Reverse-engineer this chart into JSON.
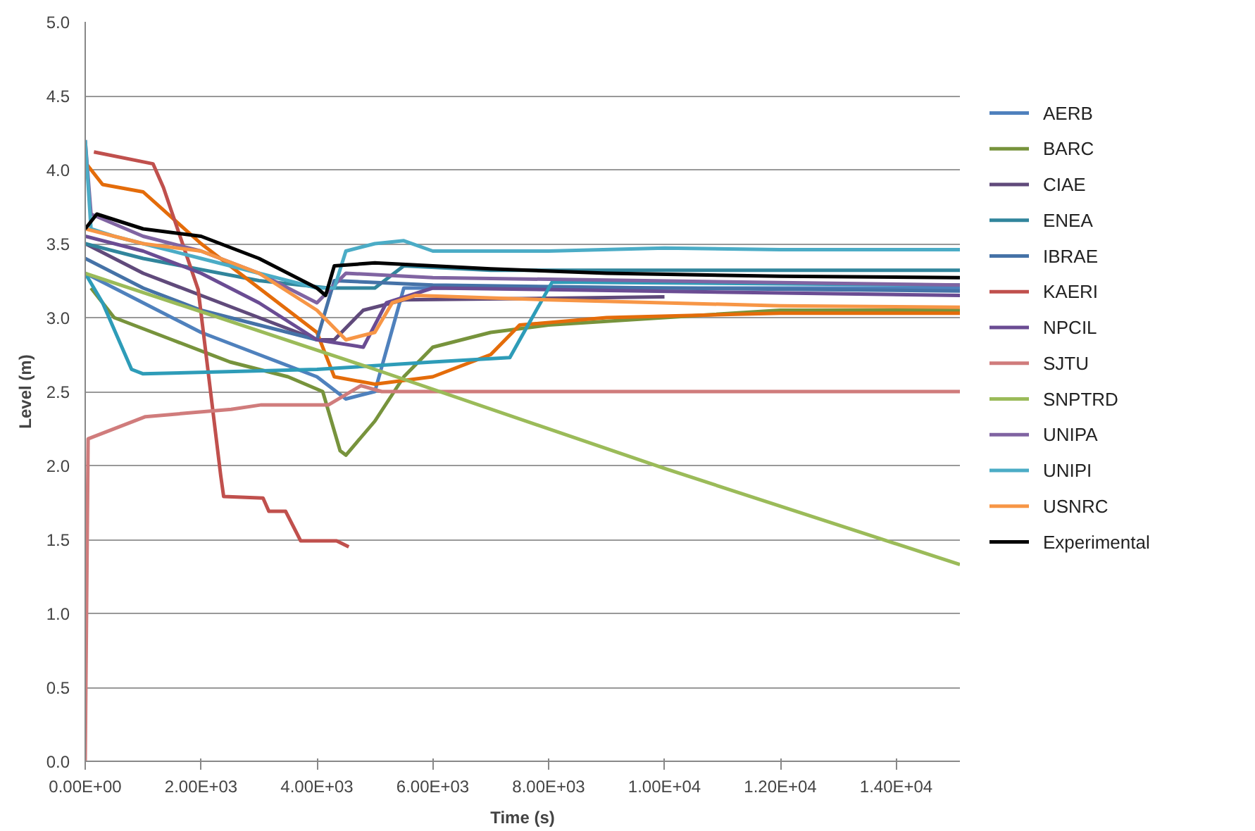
{
  "chart_data": {
    "type": "line",
    "xlabel": "Time (s)",
    "ylabel": "Level (m)",
    "xlim": [
      0,
      15100
    ],
    "ylim": [
      0,
      5
    ],
    "xticks": [
      {
        "value": 0,
        "label": "0.00E+00"
      },
      {
        "value": 2000,
        "label": "2.00E+03"
      },
      {
        "value": 4000,
        "label": "4.00E+03"
      },
      {
        "value": 6000,
        "label": "6.00E+03"
      },
      {
        "value": 8000,
        "label": "8.00E+03"
      },
      {
        "value": 10000,
        "label": "1.00E+04"
      },
      {
        "value": 12000,
        "label": "1.20E+04"
      },
      {
        "value": 14000,
        "label": "1.40E+04"
      }
    ],
    "yticks": [
      {
        "value": 0,
        "label": "0.0"
      },
      {
        "value": 0.5,
        "label": "0.5"
      },
      {
        "value": 1,
        "label": "1.0"
      },
      {
        "value": 1.5,
        "label": "1.5"
      },
      {
        "value": 2,
        "label": "2.0"
      },
      {
        "value": 2.5,
        "label": "2.5"
      },
      {
        "value": 3,
        "label": "3.0"
      },
      {
        "value": 3.5,
        "label": "3.5"
      },
      {
        "value": 4,
        "label": "4.0"
      },
      {
        "value": 4.5,
        "label": "4.5"
      },
      {
        "value": 5,
        "label": "5.0"
      }
    ],
    "grid": "y",
    "legend": "right",
    "marker": "none",
    "line_style": "solid",
    "series": [
      {
        "name": "AERB",
        "color": "#4f81bd",
        "x": [
          0,
          1000,
          2000,
          3000,
          4000,
          4500,
          5000,
          5500,
          8000,
          15100
        ],
        "values": [
          3.3,
          3.1,
          2.9,
          2.75,
          2.6,
          2.45,
          2.5,
          3.2,
          3.2,
          3.2
        ]
      },
      {
        "name": "BARC",
        "color": "#77933c",
        "x": [
          100,
          500,
          1500,
          2500,
          3500,
          4100,
          4400,
          4500,
          5000,
          5500,
          6000,
          7000,
          8000,
          10000,
          12000,
          15100
        ],
        "values": [
          3.2,
          3.0,
          2.85,
          2.7,
          2.6,
          2.5,
          2.1,
          2.07,
          2.3,
          2.6,
          2.8,
          2.9,
          2.95,
          3.0,
          3.05,
          3.05
        ]
      },
      {
        "name": "CIAE",
        "color": "#604a7b",
        "x": [
          0,
          1000,
          2000,
          3000,
          4000,
          4300,
          4800,
          5500,
          10000
        ],
        "values": [
          3.5,
          3.3,
          3.15,
          3.0,
          2.85,
          2.85,
          3.05,
          3.12,
          3.14
        ]
      },
      {
        "name": "ENEA",
        "color": "#31859c",
        "x": [
          0,
          1000,
          3000,
          4200,
          5000,
          5500,
          7000,
          10000,
          15100
        ],
        "values": [
          3.5,
          3.4,
          3.25,
          3.2,
          3.2,
          3.35,
          3.32,
          3.32,
          3.32
        ]
      },
      {
        "color": "#e46c0a",
        "x": [
          0,
          300,
          1000,
          2000,
          3000,
          4000,
          4300,
          5000,
          6000,
          7000,
          7500,
          9000,
          12000,
          15100
        ],
        "values": [
          4.05,
          3.9,
          3.85,
          3.5,
          3.2,
          2.9,
          2.6,
          2.55,
          2.6,
          2.75,
          2.95,
          3.0,
          3.03,
          3.03
        ]
      },
      {
        "name": "IBRAE",
        "color": "#4572a7",
        "x": [
          0,
          1000,
          2000,
          3000,
          4000,
          4300,
          6000,
          10000,
          15100
        ],
        "values": [
          3.4,
          3.2,
          3.05,
          2.95,
          2.85,
          3.25,
          3.22,
          3.2,
          3.18
        ]
      },
      {
        "name": "KAERI",
        "color": "#c0504d",
        "x": [
          150,
          1170,
          1350,
          1950,
          2340,
          2390,
          3070,
          3170,
          3460,
          3720,
          4340,
          4550
        ],
        "values": [
          4.12,
          4.04,
          3.88,
          3.19,
          1.93,
          1.79,
          1.78,
          1.69,
          1.69,
          1.49,
          1.49,
          1.45
        ]
      },
      {
        "name": "NPCIL",
        "color": "#6a4c93",
        "x": [
          0,
          1000,
          2000,
          3000,
          4000,
          4800,
          5200,
          6000,
          15100
        ],
        "values": [
          3.55,
          3.45,
          3.3,
          3.1,
          2.85,
          2.8,
          3.1,
          3.2,
          3.15
        ]
      },
      {
        "color": "#2e9cb8",
        "x": [
          0,
          300,
          800,
          1000,
          4000,
          6000,
          7330,
          8060,
          15100
        ],
        "values": [
          3.3,
          3.1,
          2.65,
          2.62,
          2.65,
          2.7,
          2.73,
          3.24,
          3.22
        ]
      },
      {
        "name": "SJTU",
        "color": "#d07c7c",
        "x": [
          0,
          50,
          1040,
          2520,
          3040,
          4200,
          4760,
          5120,
          15100
        ],
        "values": [
          0,
          2.18,
          2.33,
          2.38,
          2.41,
          2.41,
          2.54,
          2.5,
          2.5
        ]
      },
      {
        "name": "SNPTRD",
        "color": "#9bbb59",
        "x": [
          0,
          5000,
          10000,
          15100
        ],
        "values": [
          3.3,
          2.65,
          1.98,
          1.33
        ]
      },
      {
        "name": "UNIPA",
        "color": "#8064a2",
        "x": [
          0,
          100,
          1000,
          2000,
          3000,
          4000,
          4500,
          6000,
          15100
        ],
        "values": [
          4.2,
          3.7,
          3.55,
          3.45,
          3.3,
          3.1,
          3.3,
          3.27,
          3.22
        ]
      },
      {
        "name": "UNIPI",
        "color": "#4bacc6",
        "x": [
          0,
          100,
          500,
          1000,
          2000,
          3000,
          4000,
          4300,
          4500,
          5000,
          5500,
          6000,
          8000,
          10000,
          12000,
          15100
        ],
        "values": [
          4.2,
          3.6,
          3.55,
          3.5,
          3.4,
          3.3,
          3.2,
          3.2,
          3.45,
          3.5,
          3.52,
          3.45,
          3.45,
          3.47,
          3.46,
          3.46
        ]
      },
      {
        "name": "USNRC",
        "color": "#f79646",
        "x": [
          0,
          1000,
          2000,
          3000,
          4000,
          4500,
          5000,
          5300,
          5700,
          8000,
          12000,
          15100
        ],
        "values": [
          3.6,
          3.5,
          3.45,
          3.3,
          3.05,
          2.85,
          2.9,
          3.1,
          3.15,
          3.12,
          3.08,
          3.07
        ]
      },
      {
        "name": "Experimental",
        "color": "#000000",
        "x": [
          0,
          200,
          1000,
          2000,
          3000,
          4000,
          4150,
          4300,
          5000,
          7000,
          9000,
          12000,
          15100
        ],
        "values": [
          3.6,
          3.7,
          3.6,
          3.55,
          3.4,
          3.2,
          3.15,
          3.35,
          3.37,
          3.33,
          3.3,
          3.28,
          3.27
        ]
      }
    ]
  }
}
